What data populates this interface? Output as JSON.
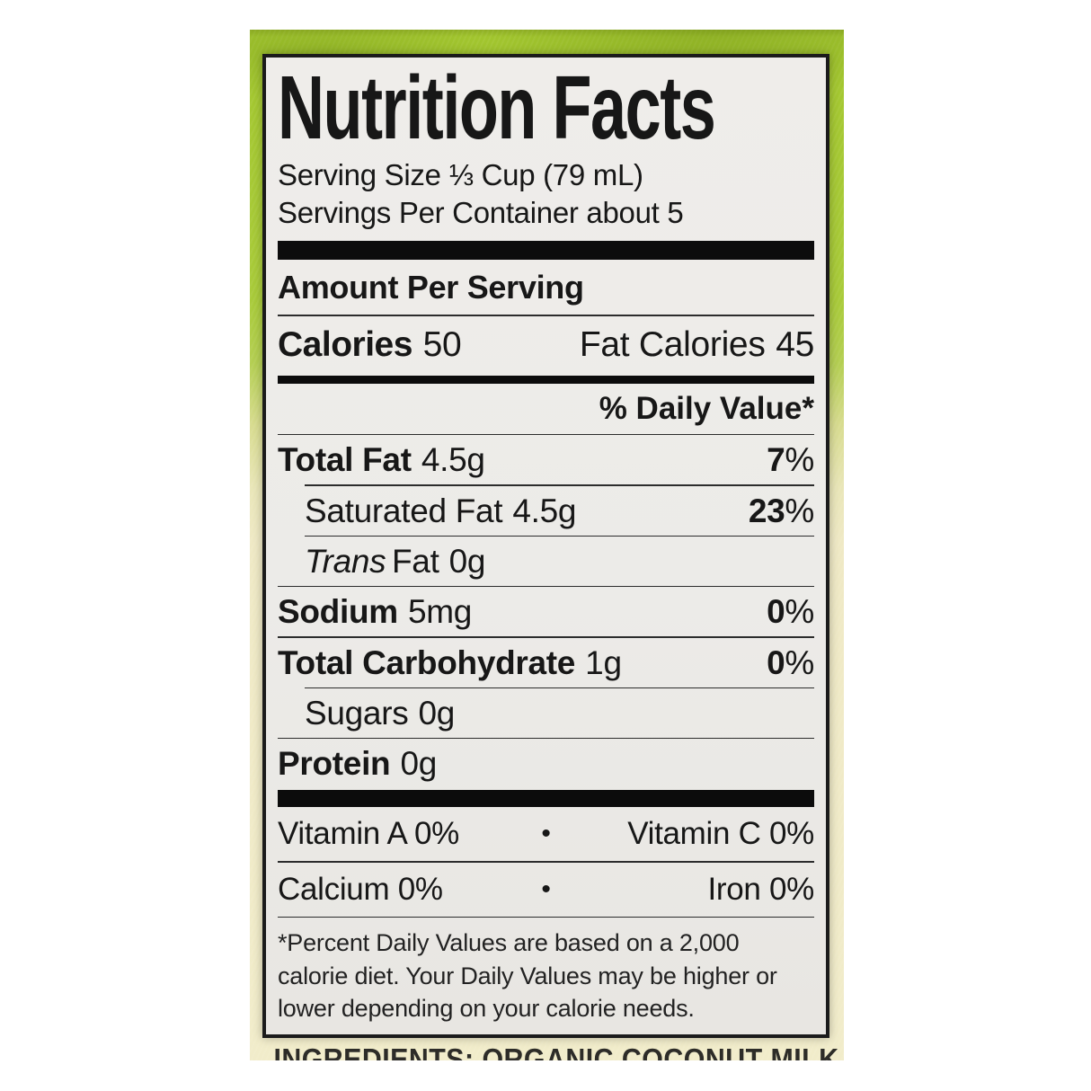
{
  "photo": {
    "package_top_color": "#a3c72f",
    "package_bottom_color": "#f1ecca"
  },
  "label": {
    "title": "Nutrition Facts",
    "serving_size": "Serving Size ⅓ Cup (79 mL)",
    "servings_per_container": "Servings Per Container about 5",
    "amount_per_serving": "Amount Per Serving",
    "calories_label": "Calories",
    "calories_value": "50",
    "fat_calories_label": "Fat Calories",
    "fat_calories_value": "45",
    "daily_value_header": "% Daily Value*",
    "nutrients": [
      {
        "prefix": "",
        "name": "Total Fat",
        "amount": "4.5g",
        "dv_num": "7",
        "dv_pct": "%"
      },
      {
        "prefix": "",
        "name": "Saturated Fat",
        "amount": "4.5g",
        "dv_num": "23",
        "dv_pct": "%"
      },
      {
        "prefix": "Trans",
        "name": "Fat",
        "amount": "0g",
        "dv_num": "",
        "dv_pct": ""
      },
      {
        "prefix": "",
        "name": "Sodium",
        "amount": "5mg",
        "dv_num": "0",
        "dv_pct": "%"
      },
      {
        "prefix": "",
        "name": "Total Carbohydrate",
        "amount": "1g",
        "dv_num": "0",
        "dv_pct": "%"
      },
      {
        "prefix": "",
        "name": "Sugars",
        "amount": "0g",
        "dv_num": "",
        "dv_pct": ""
      },
      {
        "prefix": "",
        "name": "Protein",
        "amount": "0g",
        "dv_num": "",
        "dv_pct": ""
      }
    ],
    "bullet": "•",
    "micronutrients": [
      {
        "left": "Vitamin A 0%",
        "right": "Vitamin C 0%"
      },
      {
        "left": "Calcium 0%",
        "right": "Iron 0%"
      }
    ],
    "footnote": "*Percent Daily Values are based on a 2,000 calorie diet. Your Daily Values may be higher or lower depending on your calorie needs."
  },
  "below_label": {
    "ingredients_partial": "INGREDIENTS: ORGANIC COCONUT MILK"
  }
}
